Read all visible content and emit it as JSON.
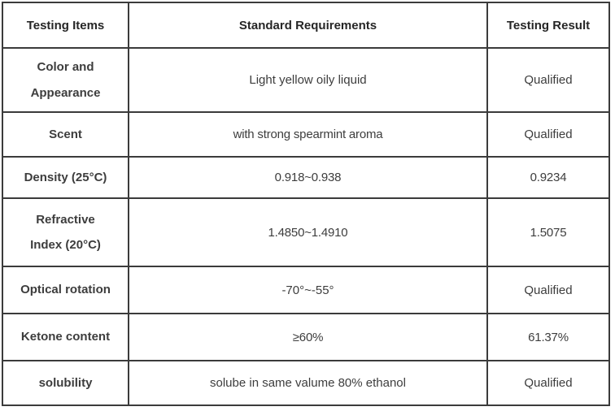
{
  "page": {
    "background_color": "#ffffff",
    "border_color": "#3b3b3b",
    "text_color": "#3d3d3d",
    "bold_text_color": "#262626"
  },
  "table": {
    "columns": [
      {
        "label": "Testing Items"
      },
      {
        "label": "Standard Requirements"
      },
      {
        "label": "Testing Result"
      }
    ],
    "rows": [
      {
        "item": "Color and\nAppearance",
        "requirement": "Light yellow oily liquid",
        "result": "Qualified"
      },
      {
        "item": "Scent",
        "requirement": "with strong spearmint aroma",
        "result": "Qualified"
      },
      {
        "item": "Density (25°C)",
        "requirement": "0.918~0.938",
        "result": "0.9234"
      },
      {
        "item": "Refractive\nIndex (20°C)",
        "requirement": "1.4850~1.4910",
        "result": "1.5075"
      },
      {
        "item": "Optical rotation",
        "requirement": "-70°~-55°",
        "result": "Qualified"
      },
      {
        "item": "Ketone content",
        "requirement": "≥60%",
        "result": "61.37%"
      },
      {
        "item": "solubility",
        "requirement": "solube in same valume 80% ethanol",
        "result": "Qualified"
      }
    ]
  }
}
